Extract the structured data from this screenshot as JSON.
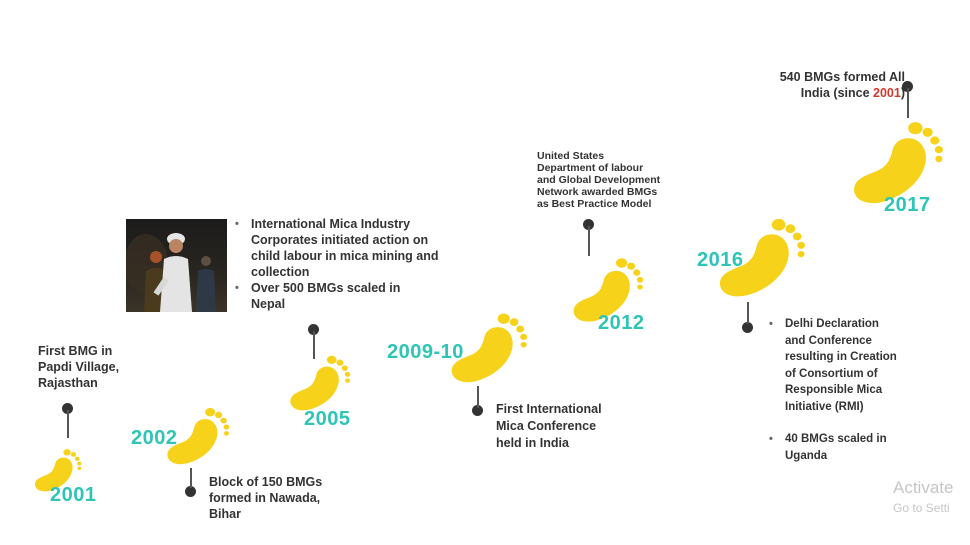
{
  "milestones": [
    {
      "year": "2001",
      "text_lines": [
        "First BMG in",
        "Papdi Village,",
        "Rajasthan"
      ]
    },
    {
      "year": "2002",
      "text_lines": [
        "Block of 150 BMGs",
        "formed in Nawada,",
        "Bihar"
      ]
    },
    {
      "year": "2005",
      "bullets": [
        [
          "International Mica Industry",
          "Corporates initiated action on",
          "child labour in mica mining and",
          "collection"
        ],
        [
          "Over 500 BMGs scaled in",
          "Nepal"
        ]
      ]
    },
    {
      "year": "2009-10",
      "text_lines": [
        "First International",
        "Mica Conference",
        "held in India"
      ]
    },
    {
      "year": "2012",
      "text_lines": [
        "United States",
        "Department of labour",
        "and Global Development",
        "Network awarded BMGs",
        "as Best Practice Model"
      ]
    },
    {
      "year": "2016",
      "bullets": [
        [
          "Delhi Declaration",
          "and Conference",
          "resulting in Creation",
          "of Consortium of",
          "Responsible Mica",
          "Initiative  (RMI)"
        ],
        [
          "40 BMGs scaled in",
          "Uganda"
        ]
      ]
    },
    {
      "year": "2017",
      "line1": "540 BMGs formed  All",
      "line2_prefix": "India (since ",
      "line2_highlight": "2001",
      "line2_suffix": ")"
    }
  ],
  "watermark": {
    "line1": "Activate",
    "line2": "Go to Setti"
  },
  "colors": {
    "footprint": "#f7d21a",
    "year": "#2ec4b6",
    "highlight": "#d03a2b"
  }
}
